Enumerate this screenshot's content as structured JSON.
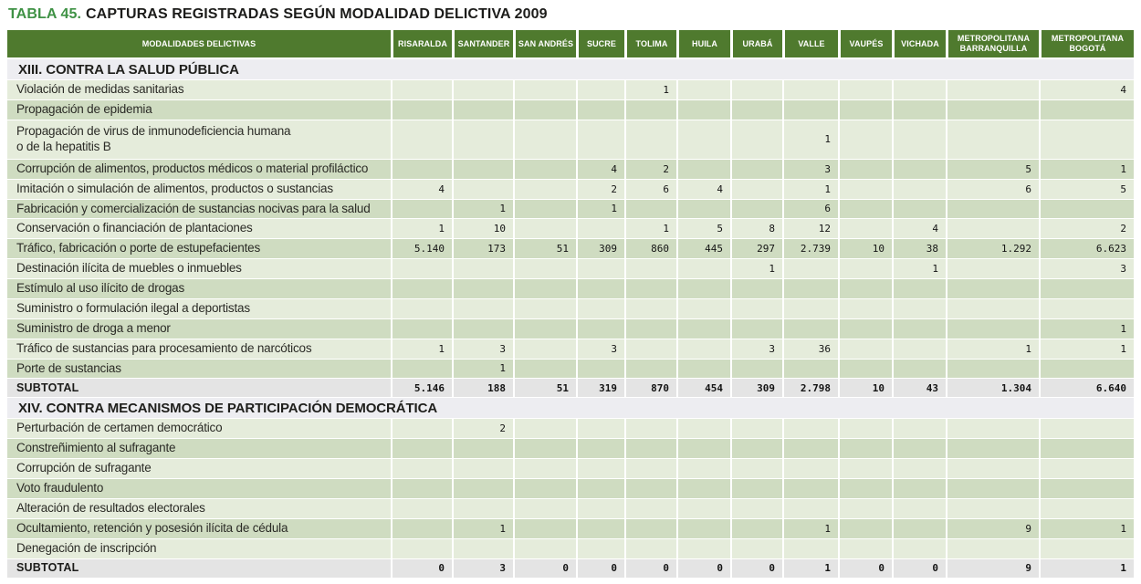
{
  "title": {
    "prefix": "TABLA 45.",
    "text": "CAPTURAS REGISTRADAS SEGÚN MODALIDAD DELICTIVA 2009"
  },
  "colors": {
    "header_green": "#4f7a2e",
    "row_light": "#e5ecdb",
    "row_dark": "#cfdcc1",
    "section_heading_bg": "#ededf1",
    "subtotal_bg": "#e4e4e4",
    "title_green": "#3f9245",
    "title_dark": "#1c1c1a"
  },
  "table": {
    "label_header": "MODALIDADES DELICTIVAS",
    "columns": [
      "RISARALDA",
      "SANTANDER",
      "SAN ANDRÉS",
      "SUCRE",
      "TOLIMA",
      "HUILA",
      "URABÁ",
      "VALLE",
      "VAUPÉS",
      "VICHADA",
      "METROPOLITANA BARRANQUILLA",
      "METROPOLITANA BOGOTÁ"
    ],
    "sections": [
      {
        "heading": "XIII. CONTRA LA SALUD PÚBLICA",
        "rows": [
          {
            "label": "Violación de medidas sanitarias",
            "values": [
              "",
              "",
              "",
              "",
              "1",
              "",
              "",
              "",
              "",
              "",
              "",
              "4"
            ]
          },
          {
            "label": "Propagación de epidemia",
            "values": [
              "",
              "",
              "",
              "",
              "",
              "",
              "",
              "",
              "",
              "",
              "",
              ""
            ]
          },
          {
            "label": "Propagación de virus de inmunodeficiencia humana\no de la hepatitis B",
            "values": [
              "",
              "",
              "",
              "",
              "",
              "",
              "",
              "1",
              "",
              "",
              "",
              ""
            ]
          },
          {
            "label": "Corrupción de alimentos, productos médicos o material profiláctico",
            "values": [
              "",
              "",
              "",
              "4",
              "2",
              "",
              "",
              "3",
              "",
              "",
              "5",
              "1"
            ]
          },
          {
            "label": "Imitación o simulación de alimentos, productos o sustancias",
            "values": [
              "4",
              "",
              "",
              "2",
              "6",
              "4",
              "",
              "1",
              "",
              "",
              "6",
              "5"
            ]
          },
          {
            "label": "Fabricación y comercialización de sustancias nocivas para la salud",
            "values": [
              "",
              "1",
              "",
              "1",
              "",
              "",
              "",
              "6",
              "",
              "",
              "",
              ""
            ]
          },
          {
            "label": "Conservación o financiación de plantaciones",
            "values": [
              "1",
              "10",
              "",
              "",
              "1",
              "5",
              "8",
              "12",
              "",
              "4",
              "",
              "2"
            ]
          },
          {
            "label": "Tráfico, fabricación o porte de estupefacientes",
            "values": [
              "5.140",
              "173",
              "51",
              "309",
              "860",
              "445",
              "297",
              "2.739",
              "10",
              "38",
              "1.292",
              "6.623"
            ]
          },
          {
            "label": "Destinación ilícita de muebles o inmuebles",
            "values": [
              "",
              "",
              "",
              "",
              "",
              "",
              "1",
              "",
              "",
              "1",
              "",
              "3"
            ]
          },
          {
            "label": "Estímulo al uso ilícito de drogas",
            "values": [
              "",
              "",
              "",
              "",
              "",
              "",
              "",
              "",
              "",
              "",
              "",
              ""
            ]
          },
          {
            "label": "Suministro o formulación ilegal a deportistas",
            "values": [
              "",
              "",
              "",
              "",
              "",
              "",
              "",
              "",
              "",
              "",
              "",
              ""
            ]
          },
          {
            "label": "Suministro de droga a menor",
            "values": [
              "",
              "",
              "",
              "",
              "",
              "",
              "",
              "",
              "",
              "",
              "",
              "1"
            ]
          },
          {
            "label": "Tráfico de sustancias para procesamiento de narcóticos",
            "values": [
              "1",
              "3",
              "",
              "3",
              "",
              "",
              "3",
              "36",
              "",
              "",
              "1",
              "1"
            ]
          },
          {
            "label": "Porte de sustancias",
            "values": [
              "",
              "1",
              "",
              "",
              "",
              "",
              "",
              "",
              "",
              "",
              "",
              ""
            ]
          }
        ],
        "subtotal": {
          "label": "SUBTOTAL",
          "values": [
            "5.146",
            "188",
            "51",
            "319",
            "870",
            "454",
            "309",
            "2.798",
            "10",
            "43",
            "1.304",
            "6.640"
          ]
        }
      },
      {
        "heading": "XIV. CONTRA MECANISMOS DE PARTICIPACIÓN DEMOCRÁTICA",
        "rows": [
          {
            "label": "Perturbación de certamen democrático",
            "values": [
              "",
              "2",
              "",
              "",
              "",
              "",
              "",
              "",
              "",
              "",
              "",
              ""
            ]
          },
          {
            "label": "Constreñimiento al sufragante",
            "values": [
              "",
              "",
              "",
              "",
              "",
              "",
              "",
              "",
              "",
              "",
              "",
              ""
            ]
          },
          {
            "label": "Corrupción de sufragante",
            "values": [
              "",
              "",
              "",
              "",
              "",
              "",
              "",
              "",
              "",
              "",
              "",
              ""
            ]
          },
          {
            "label": "Voto fraudulento",
            "values": [
              "",
              "",
              "",
              "",
              "",
              "",
              "",
              "",
              "",
              "",
              "",
              ""
            ]
          },
          {
            "label": "Alteración de resultados electorales",
            "values": [
              "",
              "",
              "",
              "",
              "",
              "",
              "",
              "",
              "",
              "",
              "",
              ""
            ]
          },
          {
            "label": "Ocultamiento, retención y posesión ilícita de cédula",
            "values": [
              "",
              "1",
              "",
              "",
              "",
              "",
              "",
              "1",
              "",
              "",
              "9",
              "1"
            ]
          },
          {
            "label": "Denegación de inscripción",
            "values": [
              "",
              "",
              "",
              "",
              "",
              "",
              "",
              "",
              "",
              "",
              "",
              ""
            ]
          }
        ],
        "subtotal": {
          "label": "SUBTOTAL",
          "values": [
            "0",
            "3",
            "0",
            "0",
            "0",
            "0",
            "0",
            "1",
            "0",
            "0",
            "9",
            "1"
          ]
        }
      }
    ]
  }
}
